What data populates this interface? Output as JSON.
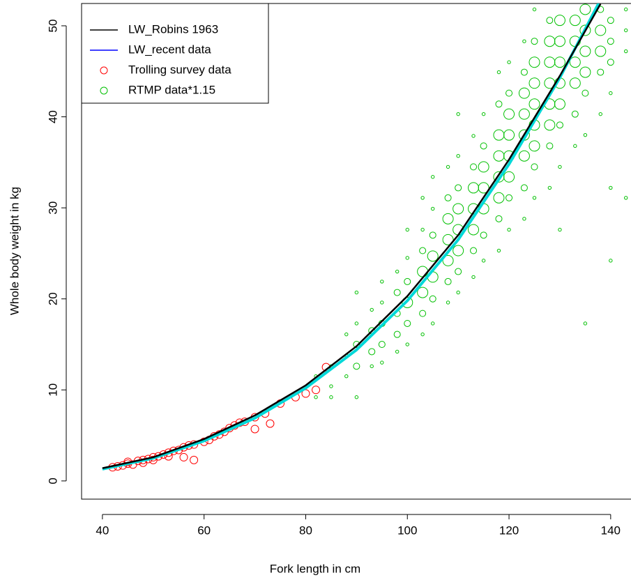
{
  "chart_data": {
    "type": "scatter-line",
    "xlabel": "Fork length in cm",
    "ylabel": "Whole body weight in kg",
    "xlim": [
      35.9,
      144
    ],
    "ylim": [
      -2,
      52.45
    ],
    "xticks": [
      40,
      60,
      80,
      100,
      120,
      140
    ],
    "yticks": [
      0,
      10,
      20,
      30,
      40,
      50
    ],
    "legend": "top-left",
    "lines": [
      {
        "name": "LW_Robins 1963",
        "color": "#000000",
        "x": [
          40,
          50,
          60,
          70,
          80,
          90,
          100,
          110,
          120,
          130,
          138
        ],
        "values": [
          1.4,
          2.6,
          4.6,
          7.2,
          10.5,
          14.8,
          20.3,
          27.0,
          35.3,
          44.5,
          52.4
        ]
      },
      {
        "name": "LW_recent data",
        "color": "#0000ff",
        "line_color": "#00d8d8",
        "x": [
          40,
          50,
          60,
          70,
          80,
          90,
          100,
          110,
          120,
          130,
          140
        ],
        "values": [
          1.3,
          2.5,
          4.4,
          6.9,
          10.2,
          14.4,
          19.8,
          26.5,
          34.8,
          44.3,
          55
        ]
      }
    ],
    "points": [
      {
        "name": "Trolling survey data",
        "color": "#ff0000",
        "x": [
          42,
          43,
          44,
          45,
          45,
          46,
          47,
          48,
          48,
          49,
          50,
          50,
          51,
          52,
          53,
          53,
          54,
          55,
          56,
          56,
          57,
          58,
          58,
          60,
          61,
          62,
          63,
          64,
          65,
          66,
          67,
          68,
          70,
          70,
          72,
          73,
          75,
          78,
          80,
          84,
          82
        ],
        "values": [
          1.5,
          1.6,
          1.7,
          1.9,
          2.1,
          1.8,
          2.2,
          2.3,
          2.0,
          2.4,
          2.6,
          2.3,
          2.7,
          2.9,
          3.1,
          2.7,
          3.3,
          3.4,
          3.7,
          2.6,
          3.9,
          2.3,
          4.0,
          4.3,
          4.5,
          4.9,
          5.1,
          5.4,
          5.8,
          6.1,
          6.4,
          6.5,
          5.7,
          7.0,
          7.4,
          6.3,
          8.5,
          9.2,
          9.6,
          12.5,
          10.0
        ]
      },
      {
        "name": "RTMP data*1.15",
        "color": "#00c000",
        "x": [
          82,
          82,
          85,
          85,
          85,
          88,
          88,
          88,
          90,
          90,
          90,
          90,
          90,
          93,
          93,
          93,
          93,
          95,
          95,
          95,
          95,
          95,
          98,
          98,
          98,
          98,
          98,
          100,
          100,
          100,
          100,
          100,
          100,
          103,
          103,
          103,
          103,
          103,
          103,
          103,
          105,
          105,
          105,
          105,
          105,
          105,
          105,
          108,
          108,
          108,
          108,
          108,
          108,
          108,
          110,
          110,
          110,
          110,
          110,
          110,
          110,
          110,
          113,
          113,
          113,
          113,
          113,
          113,
          113,
          115,
          115,
          115,
          115,
          115,
          115,
          115,
          118,
          118,
          118,
          118,
          118,
          118,
          118,
          118,
          120,
          120,
          120,
          120,
          120,
          120,
          120,
          120,
          123,
          123,
          123,
          123,
          123,
          123,
          123,
          123,
          125,
          125,
          125,
          125,
          125,
          125,
          125,
          125,
          125,
          128,
          128,
          128,
          128,
          128,
          128,
          128,
          128,
          130,
          130,
          130,
          130,
          130,
          130,
          130,
          130,
          133,
          133,
          133,
          133,
          133,
          133,
          135,
          135,
          135,
          135,
          135,
          135,
          135,
          138,
          138,
          138,
          138,
          138,
          140,
          140,
          140,
          140,
          140,
          140,
          143,
          143,
          143,
          143
        ],
        "values": [
          9.2,
          11.5,
          10.4,
          12.6,
          9.2,
          11.5,
          13.8,
          16.1,
          12.6,
          15.0,
          17.3,
          20.7,
          9.2,
          14.2,
          16.5,
          18.8,
          12.6,
          15.0,
          17.3,
          19.6,
          13.0,
          21.9,
          16.1,
          18.4,
          20.7,
          23.0,
          14.2,
          17.3,
          19.6,
          21.9,
          24.5,
          15.0,
          27.6,
          18.4,
          20.7,
          23.0,
          25.3,
          27.6,
          16.1,
          31.1,
          20.0,
          22.4,
          24.7,
          27.0,
          29.9,
          33.4,
          17.3,
          21.9,
          24.2,
          26.5,
          28.8,
          31.1,
          34.5,
          19.6,
          23.0,
          25.3,
          27.6,
          29.9,
          32.2,
          35.7,
          20.7,
          40.3,
          25.3,
          27.6,
          29.9,
          32.2,
          34.5,
          37.9,
          22.4,
          27.0,
          29.9,
          32.2,
          34.5,
          36.8,
          40.3,
          24.2,
          28.8,
          31.1,
          33.4,
          35.7,
          38.0,
          41.4,
          25.3,
          44.9,
          31.1,
          33.4,
          35.7,
          38.0,
          40.3,
          42.6,
          27.6,
          46.0,
          32.2,
          35.7,
          38.0,
          40.3,
          42.6,
          44.9,
          28.8,
          48.3,
          34.5,
          36.8,
          39.1,
          41.4,
          43.7,
          46.0,
          48.3,
          31.1,
          51.8,
          36.8,
          39.1,
          41.4,
          43.7,
          46.0,
          48.3,
          50.6,
          32.2,
          39.1,
          41.4,
          43.7,
          46.0,
          48.3,
          50.6,
          34.5,
          27.6,
          40.3,
          43.7,
          46.0,
          48.3,
          50.6,
          36.8,
          42.6,
          44.9,
          47.2,
          49.5,
          51.8,
          38.0,
          17.3,
          44.9,
          47.2,
          49.5,
          51.8,
          40.3,
          46.0,
          48.3,
          50.6,
          42.6,
          24.2,
          32.2,
          47.2,
          49.5,
          51.8,
          31.1
        ],
        "sizes": [
          1,
          1,
          1,
          1,
          1,
          1,
          1,
          1,
          2,
          2,
          1,
          1,
          1,
          2,
          2,
          1,
          1,
          2,
          2,
          1,
          1,
          1,
          2,
          2,
          2,
          1,
          1,
          2,
          3,
          2,
          1,
          1,
          1,
          2,
          3,
          3,
          2,
          1,
          1,
          1,
          2,
          3,
          3,
          2,
          1,
          1,
          1,
          2,
          3,
          3,
          3,
          2,
          1,
          1,
          2,
          3,
          3,
          3,
          2,
          1,
          1,
          1,
          2,
          3,
          3,
          3,
          2,
          1,
          1,
          2,
          3,
          3,
          3,
          2,
          1,
          1,
          2,
          3,
          3,
          3,
          3,
          2,
          1,
          1,
          2,
          3,
          3,
          3,
          3,
          2,
          1,
          1,
          2,
          3,
          3,
          3,
          3,
          2,
          1,
          1,
          2,
          3,
          3,
          3,
          3,
          3,
          2,
          1,
          1,
          2,
          3,
          3,
          3,
          3,
          3,
          2,
          1,
          2,
          3,
          3,
          3,
          3,
          3,
          1,
          1,
          2,
          3,
          3,
          3,
          3,
          1,
          2,
          3,
          3,
          3,
          3,
          1,
          1,
          2,
          3,
          3,
          2,
          1,
          2,
          2,
          2,
          1,
          1,
          1,
          1,
          1,
          1,
          1
        ]
      }
    ]
  }
}
